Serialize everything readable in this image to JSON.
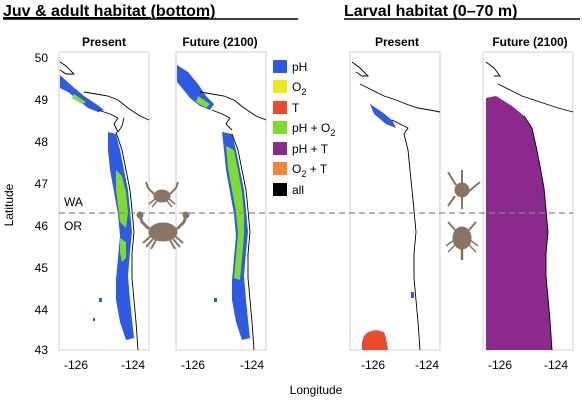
{
  "sections": {
    "juvenile": {
      "title": "Juv & adult habitat (bottom)"
    },
    "larval": {
      "title": "Larval habitat (0–70 m)"
    }
  },
  "panels": [
    {
      "id": "juv-present",
      "label": "Present"
    },
    {
      "id": "juv-future",
      "label": "Future (2100)"
    },
    {
      "id": "larv-present",
      "label": "Present"
    },
    {
      "id": "larv-future",
      "label": "Future (2100)"
    }
  ],
  "axes": {
    "xlabel": "Longitude",
    "ylabel": "Latitude",
    "lat_ticks": [
      "50",
      "49",
      "48",
      "47",
      "46",
      "45",
      "44",
      "43"
    ],
    "lon_ticks": [
      "-126",
      "-124"
    ]
  },
  "state_labels": {
    "north": "WA",
    "south": "OR"
  },
  "legend": [
    {
      "label": "pH",
      "sub": "",
      "color": "#2d5be3"
    },
    {
      "label": "O",
      "sub": "2",
      "color": "#f2e51e"
    },
    {
      "label": "T",
      "sub": "",
      "color": "#ee4a2e"
    },
    {
      "label": "pH + O",
      "sub": "2",
      "color": "#7ddc2c"
    },
    {
      "label": "pH + T",
      "sub": "",
      "color": "#8a2a8c"
    },
    {
      "label": "O",
      "sub": "2",
      "suffix": " + T",
      "color": "#f4833a"
    },
    {
      "label": "all",
      "sub": "",
      "color": "#000000"
    }
  ],
  "colors": {
    "crab": "#8a7463",
    "coast": "#000000",
    "border": "#d8d8d8",
    "dashed": "#888888"
  }
}
